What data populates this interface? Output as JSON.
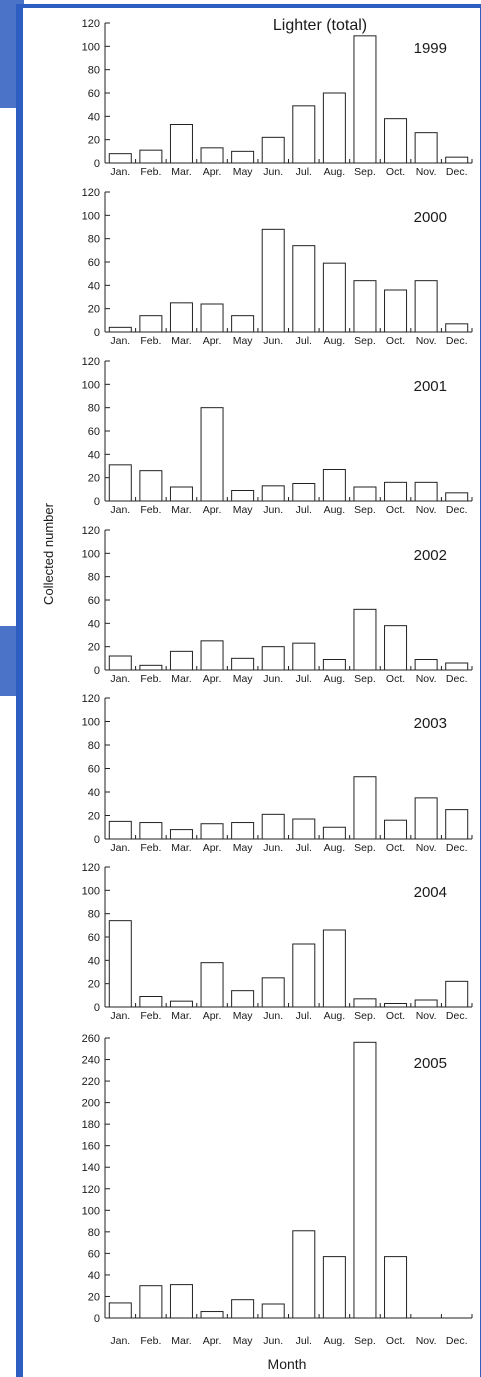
{
  "chart_data": {
    "type": "bar",
    "title": "Lighter (total)",
    "xlabel": "Month",
    "ylabel": "Collected number",
    "categories": [
      "Jan.",
      "Feb.",
      "Mar.",
      "Apr.",
      "May",
      "Jun.",
      "Jul.",
      "Aug.",
      "Sep.",
      "Oct.",
      "Nov.",
      "Dec."
    ],
    "panels": [
      {
        "name": "1999",
        "ylim": [
          0,
          120
        ],
        "ticks": [
          0,
          20,
          40,
          60,
          80,
          100,
          120
        ],
        "values": [
          8,
          11,
          33,
          13,
          10,
          22,
          49,
          60,
          109,
          38,
          26,
          5
        ]
      },
      {
        "name": "2000",
        "ylim": [
          0,
          120
        ],
        "ticks": [
          0,
          20,
          40,
          60,
          80,
          100,
          120
        ],
        "values": [
          4,
          14,
          25,
          24,
          14,
          88,
          74,
          59,
          44,
          36,
          44,
          7
        ]
      },
      {
        "name": "2001",
        "ylim": [
          0,
          120
        ],
        "ticks": [
          0,
          20,
          40,
          60,
          80,
          100,
          120
        ],
        "values": [
          31,
          26,
          12,
          80,
          9,
          13,
          15,
          27,
          12,
          16,
          16,
          7
        ]
      },
      {
        "name": "2002",
        "ylim": [
          0,
          120
        ],
        "ticks": [
          0,
          20,
          40,
          60,
          80,
          100,
          120
        ],
        "values": [
          12,
          4,
          16,
          25,
          10,
          20,
          23,
          9,
          52,
          38,
          9,
          6
        ]
      },
      {
        "name": "2003",
        "ylim": [
          0,
          120
        ],
        "ticks": [
          0,
          20,
          40,
          60,
          80,
          100,
          120
        ],
        "values": [
          15,
          14,
          8,
          13,
          14,
          21,
          17,
          10,
          53,
          16,
          35,
          25
        ]
      },
      {
        "name": "2004",
        "ylim": [
          0,
          120
        ],
        "ticks": [
          0,
          20,
          40,
          60,
          80,
          100,
          120
        ],
        "values": [
          74,
          9,
          5,
          38,
          14,
          25,
          54,
          66,
          7,
          3,
          6,
          22
        ]
      },
      {
        "name": "2005",
        "ylim": [
          0,
          260
        ],
        "ticks": [
          0,
          20,
          40,
          60,
          80,
          100,
          120,
          140,
          160,
          180,
          200,
          220,
          240,
          260
        ],
        "values": [
          14,
          30,
          31,
          6,
          17,
          13,
          81,
          57,
          256,
          57,
          0,
          0
        ]
      }
    ]
  },
  "colors": {
    "frame": "#2e5ec2",
    "accent": "#4b74c8",
    "bar_fill": "#ffffff",
    "bar_stroke": "#222222"
  }
}
